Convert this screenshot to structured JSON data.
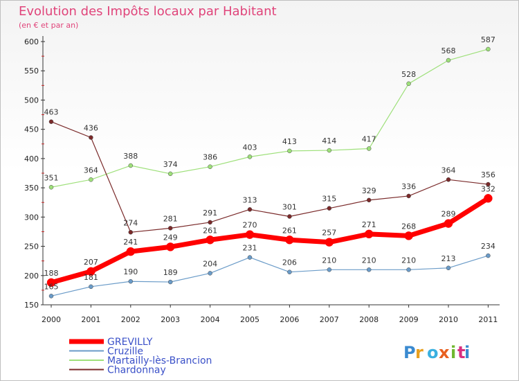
{
  "chart_data": {
    "type": "line",
    "title": "Evolution des Impôts locaux par Habitant",
    "subtitle": "(en € et par an)",
    "xlabel": "",
    "ylabel": "",
    "x": [
      "2000",
      "2001",
      "2002",
      "2003",
      "2004",
      "2005",
      "2006",
      "2007",
      "2008",
      "2009",
      "2010",
      "2011"
    ],
    "ylim": [
      150,
      600
    ],
    "yticks": [
      150,
      200,
      250,
      300,
      350,
      400,
      450,
      500,
      550,
      600
    ],
    "grid": false,
    "legend_position": "bottom-left",
    "series": [
      {
        "name": "GREVILLY",
        "color": "#ff0000",
        "values": [
          188,
          207,
          241,
          249,
          261,
          270,
          261,
          257,
          271,
          268,
          289,
          332
        ]
      },
      {
        "name": "Cruzille",
        "color": "#6a9bc8",
        "values": [
          165,
          181,
          190,
          189,
          204,
          231,
          206,
          210,
          210,
          210,
          213,
          234
        ]
      },
      {
        "name": "Martailly-lès-Brancion",
        "color": "#9ee07a",
        "values": [
          351,
          364,
          388,
          374,
          386,
          403,
          413,
          414,
          417,
          528,
          568,
          587
        ]
      },
      {
        "name": "Chardonnay",
        "color": "#7a2a2a",
        "values": [
          463,
          436,
          274,
          281,
          291,
          313,
          301,
          315,
          329,
          336,
          364,
          356
        ]
      }
    ]
  },
  "watermark": "Proxiti"
}
